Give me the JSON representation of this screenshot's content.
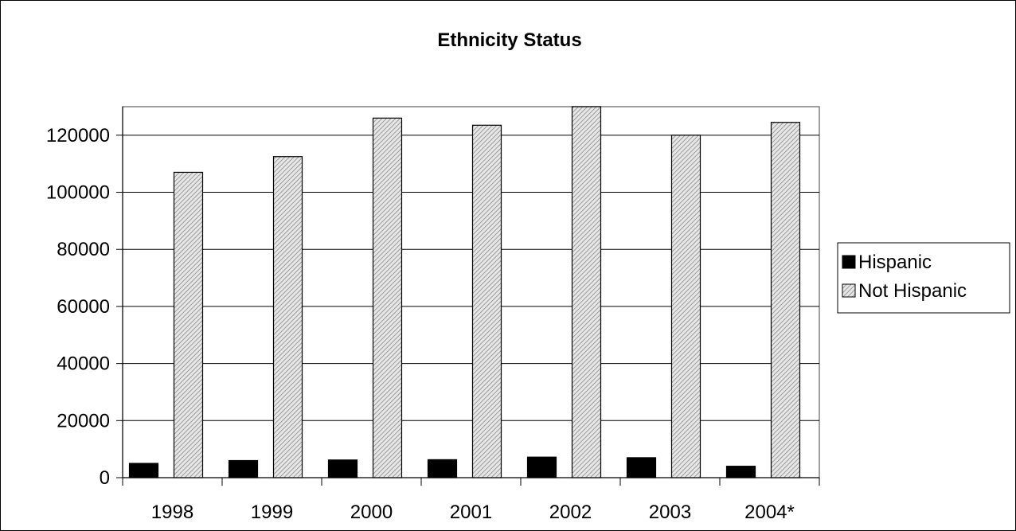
{
  "chart_data": {
    "type": "bar",
    "title": "Ethnicity Status",
    "xlabel": "",
    "ylabel": "",
    "categories": [
      "1998",
      "1999",
      "2000",
      "2001",
      "2002",
      "2003",
      "2004*"
    ],
    "series": [
      {
        "name": "Hispanic",
        "values": [
          5000,
          6000,
          6200,
          6300,
          7200,
          7000,
          4000
        ],
        "color": "#000000"
      },
      {
        "name": "Not Hispanic",
        "values": [
          107000,
          112500,
          126000,
          123500,
          130000,
          120000,
          124500
        ],
        "color": "#c8c8c8",
        "pattern": "diagonal-hatch"
      }
    ],
    "ylim": [
      0,
      130000
    ],
    "yticks": [
      "0",
      "20000",
      "40000",
      "60000",
      "80000",
      "100000",
      "120000"
    ],
    "grid": true,
    "legend": "right"
  }
}
